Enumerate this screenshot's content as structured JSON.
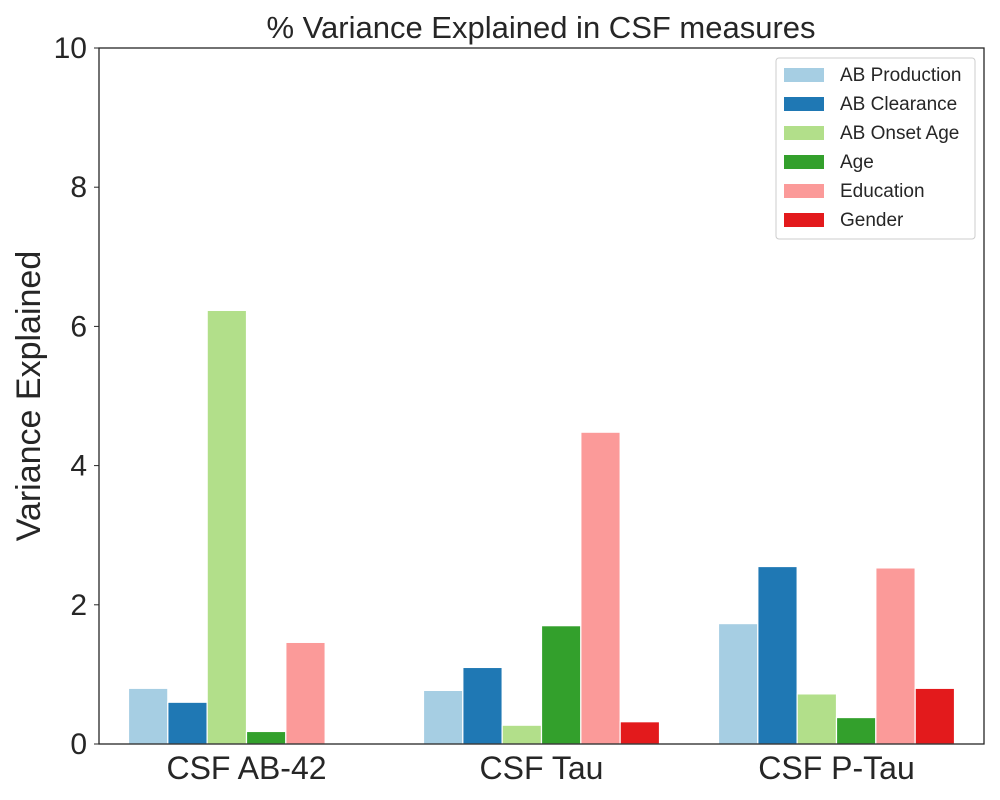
{
  "chart_data": {
    "type": "bar",
    "title": "% Variance Explained in CSF measures",
    "xlabel": "",
    "ylabel": "Variance Explained",
    "ylim": [
      0,
      10
    ],
    "yticks": [
      "0",
      "2",
      "4",
      "6",
      "8",
      "10"
    ],
    "categories": [
      "CSF AB-42",
      "CSF Tau",
      "CSF P-Tau"
    ],
    "series": [
      {
        "name": "AB Production",
        "color": "#a6cee3",
        "values": [
          0.8,
          0.77,
          1.73
        ]
      },
      {
        "name": "AB Clearance",
        "color": "#1f78b4",
        "values": [
          0.6,
          1.1,
          2.55
        ]
      },
      {
        "name": "AB Onset Age",
        "color": "#b2df8a",
        "values": [
          6.23,
          0.27,
          0.72
        ]
      },
      {
        "name": "Age",
        "color": "#33a02c",
        "values": [
          0.18,
          1.7,
          0.38
        ]
      },
      {
        "name": "Education",
        "color": "#fb9a99",
        "values": [
          1.46,
          4.48,
          2.53
        ]
      },
      {
        "name": "Gender",
        "color": "#e31a1c",
        "values": [
          0.0,
          0.32,
          0.8
        ]
      }
    ],
    "grid": false,
    "legend_position": "top-right"
  }
}
